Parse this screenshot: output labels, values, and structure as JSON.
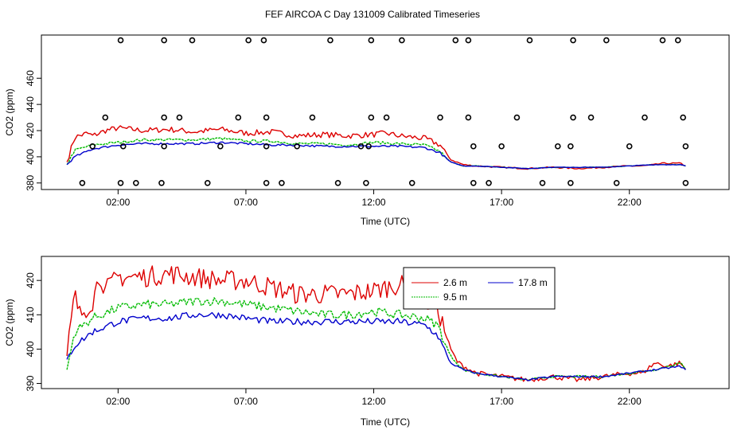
{
  "title": "FEF AIRCOA C  Day 131009  Calibrated Timeseries",
  "colors": {
    "red": "#dd0000",
    "green": "#00bb00",
    "blue": "#0000cc",
    "axis": "#000000"
  },
  "chart_data": [
    {
      "type": "line",
      "panel": "top",
      "xlabel": "Time (UTC)",
      "ylabel": "CO2 (ppm)",
      "x_ticks": [
        2,
        7,
        12,
        17,
        22
      ],
      "x_tick_labels": [
        "02:00",
        "07:00",
        "12:00",
        "17:00",
        "22:00"
      ],
      "xlim": [
        -1.0,
        25.9
      ],
      "y_ticks": [
        380,
        400,
        420,
        440,
        460
      ],
      "y_tick_labels": [
        "380",
        "400",
        "420",
        "440",
        "460"
      ],
      "ylim": [
        375,
        493
      ],
      "series_keypoints": {
        "red": [
          [
            0,
            396
          ],
          [
            0.3,
            415
          ],
          [
            0.8,
            418
          ],
          [
            1,
            416
          ],
          [
            1.5,
            420
          ],
          [
            2,
            422
          ],
          [
            3,
            420
          ],
          [
            4,
            421
          ],
          [
            5,
            419
          ],
          [
            6,
            421
          ],
          [
            7,
            418
          ],
          [
            8,
            419
          ],
          [
            9,
            416
          ],
          [
            10,
            417
          ],
          [
            11,
            416
          ],
          [
            12,
            417
          ],
          [
            12.5,
            418
          ],
          [
            13,
            416
          ],
          [
            13.5,
            415
          ],
          [
            14,
            414
          ],
          [
            14.6,
            409
          ],
          [
            15,
            398
          ],
          [
            15.5,
            394
          ],
          [
            16,
            393
          ],
          [
            17,
            392
          ],
          [
            18,
            391
          ],
          [
            19,
            392
          ],
          [
            20,
            391
          ],
          [
            21,
            392
          ],
          [
            22,
            393
          ],
          [
            22.5,
            393
          ],
          [
            23,
            394
          ],
          [
            23.3,
            395
          ],
          [
            24,
            395
          ],
          [
            24.2,
            393
          ]
        ],
        "green": [
          [
            0,
            394
          ],
          [
            0.3,
            405
          ],
          [
            1,
            409
          ],
          [
            2,
            411
          ],
          [
            3,
            413
          ],
          [
            4,
            413
          ],
          [
            5,
            413
          ],
          [
            6,
            414
          ],
          [
            7,
            412
          ],
          [
            8,
            412
          ],
          [
            9,
            410
          ],
          [
            10,
            410
          ],
          [
            11,
            409
          ],
          [
            12,
            411
          ],
          [
            13,
            410
          ],
          [
            14,
            409
          ],
          [
            14.6,
            404
          ],
          [
            15,
            396
          ],
          [
            15.5,
            393
          ],
          [
            16,
            393
          ],
          [
            17,
            392
          ],
          [
            18,
            391
          ],
          [
            19,
            392
          ],
          [
            20,
            392
          ],
          [
            21,
            392
          ],
          [
            22,
            393
          ],
          [
            23,
            394
          ],
          [
            24,
            394
          ],
          [
            24.2,
            393
          ]
        ],
        "blue": [
          [
            0,
            394
          ],
          [
            0.3,
            400
          ],
          [
            1,
            406
          ],
          [
            2,
            409
          ],
          [
            3,
            410
          ],
          [
            4,
            410
          ],
          [
            5,
            410
          ],
          [
            6,
            411
          ],
          [
            7,
            410
          ],
          [
            8,
            409
          ],
          [
            9,
            409
          ],
          [
            10,
            408
          ],
          [
            11,
            408
          ],
          [
            12,
            408
          ],
          [
            13,
            408
          ],
          [
            14,
            407
          ],
          [
            14.6,
            403
          ],
          [
            15,
            396
          ],
          [
            15.5,
            393
          ],
          [
            16,
            393
          ],
          [
            17,
            392
          ],
          [
            18,
            391
          ],
          [
            19,
            392
          ],
          [
            20,
            392
          ],
          [
            21,
            392
          ],
          [
            22,
            393
          ],
          [
            23,
            394
          ],
          [
            24,
            394
          ],
          [
            24.2,
            393
          ]
        ]
      },
      "circle_markers": [
        [
          0.6,
          380
        ],
        [
          2.1,
          380
        ],
        [
          2.7,
          380
        ],
        [
          3.7,
          380
        ],
        [
          5.5,
          380
        ],
        [
          7.8,
          380
        ],
        [
          8.4,
          380
        ],
        [
          10.6,
          380
        ],
        [
          11.7,
          380
        ],
        [
          13.5,
          380
        ],
        [
          15.9,
          380
        ],
        [
          16.5,
          380
        ],
        [
          18.6,
          380
        ],
        [
          19.7,
          380
        ],
        [
          21.5,
          380
        ],
        [
          24.2,
          380
        ],
        [
          1.0,
          408
        ],
        [
          2.2,
          408
        ],
        [
          3.8,
          408
        ],
        [
          6,
          408
        ],
        [
          7.8,
          408
        ],
        [
          9,
          408
        ],
        [
          11.5,
          408
        ],
        [
          11.8,
          408
        ],
        [
          15.9,
          408
        ],
        [
          17,
          408
        ],
        [
          19.2,
          408
        ],
        [
          19.7,
          408
        ],
        [
          22,
          408
        ],
        [
          24.2,
          408
        ],
        [
          1.5,
          430
        ],
        [
          3.8,
          430
        ],
        [
          4.4,
          430
        ],
        [
          6.7,
          430
        ],
        [
          7.8,
          430
        ],
        [
          9.6,
          430
        ],
        [
          11.9,
          430
        ],
        [
          12.5,
          430
        ],
        [
          14.6,
          430
        ],
        [
          15.7,
          430
        ],
        [
          17.6,
          430
        ],
        [
          19.8,
          430
        ],
        [
          20.5,
          430
        ],
        [
          22.6,
          430
        ],
        [
          24.1,
          430
        ],
        [
          2.1,
          489
        ],
        [
          3.8,
          489
        ],
        [
          4.9,
          489
        ],
        [
          7.1,
          489
        ],
        [
          7.7,
          489
        ],
        [
          10.3,
          489
        ],
        [
          11.9,
          489
        ],
        [
          13.1,
          489
        ],
        [
          15.2,
          489
        ],
        [
          15.7,
          489
        ],
        [
          18.1,
          489
        ],
        [
          19.8,
          489
        ],
        [
          21.1,
          489
        ],
        [
          23.3,
          489
        ],
        [
          23.9,
          489
        ]
      ]
    },
    {
      "type": "line",
      "panel": "bottom",
      "xlabel": "Time (UTC)",
      "ylabel": "CO2 (ppm)",
      "x_ticks": [
        2,
        7,
        12,
        17,
        22
      ],
      "x_tick_labels": [
        "02:00",
        "07:00",
        "12:00",
        "17:00",
        "22:00"
      ],
      "xlim": [
        -1.0,
        25.9
      ],
      "y_ticks": [
        390,
        400,
        410,
        420
      ],
      "y_tick_labels": [
        "390",
        "400",
        "410",
        "420"
      ],
      "ylim": [
        388.5,
        427
      ],
      "series_keypoints": {
        "red": [
          [
            0,
            398
          ],
          [
            0.2,
            410
          ],
          [
            0.3,
            416
          ],
          [
            0.5,
            410
          ],
          [
            1,
            414
          ],
          [
            1.3,
            422
          ],
          [
            1.5,
            417
          ],
          [
            2,
            421
          ],
          [
            3,
            421
          ],
          [
            4,
            422
          ],
          [
            5,
            421
          ],
          [
            6,
            420
          ],
          [
            7,
            420
          ],
          [
            8,
            418
          ],
          [
            9,
            416
          ],
          [
            10,
            416
          ],
          [
            11,
            416
          ],
          [
            12,
            417
          ],
          [
            13,
            419
          ],
          [
            13.8,
            415
          ],
          [
            14.5,
            412
          ],
          [
            15,
            400
          ],
          [
            15.3,
            396
          ],
          [
            16,
            393
          ],
          [
            17,
            392
          ],
          [
            18,
            391
          ],
          [
            19,
            392
          ],
          [
            20,
            391
          ],
          [
            21,
            392
          ],
          [
            22,
            393
          ],
          [
            22.5,
            393
          ],
          [
            23,
            396
          ],
          [
            23.5,
            395
          ],
          [
            24,
            396
          ],
          [
            24.2,
            394
          ]
        ],
        "green": [
          [
            0,
            394
          ],
          [
            0.3,
            405
          ],
          [
            1,
            409
          ],
          [
            2,
            412
          ],
          [
            3,
            413
          ],
          [
            4,
            413
          ],
          [
            5,
            414
          ],
          [
            6,
            414
          ],
          [
            7,
            413
          ],
          [
            8,
            412
          ],
          [
            9,
            411
          ],
          [
            10,
            410
          ],
          [
            11,
            410
          ],
          [
            12,
            411
          ],
          [
            13,
            410
          ],
          [
            14,
            409
          ],
          [
            14.5,
            407
          ],
          [
            15,
            398
          ],
          [
            15.5,
            394
          ],
          [
            16,
            393
          ],
          [
            17,
            392
          ],
          [
            18,
            391
          ],
          [
            19,
            392
          ],
          [
            20,
            392
          ],
          [
            21,
            392
          ],
          [
            22,
            393
          ],
          [
            23,
            394
          ],
          [
            24,
            396
          ],
          [
            24.2,
            394
          ]
        ],
        "blue": [
          [
            0,
            397
          ],
          [
            0.3,
            401
          ],
          [
            1,
            405
          ],
          [
            2,
            408
          ],
          [
            3,
            409
          ],
          [
            4,
            409
          ],
          [
            5,
            410
          ],
          [
            6,
            410
          ],
          [
            7,
            409
          ],
          [
            8,
            408
          ],
          [
            9,
            408
          ],
          [
            10,
            408
          ],
          [
            11,
            408
          ],
          [
            12,
            408
          ],
          [
            13,
            408
          ],
          [
            14,
            407
          ],
          [
            14.5,
            404
          ],
          [
            15,
            396
          ],
          [
            15.5,
            394
          ],
          [
            16,
            393
          ],
          [
            17,
            392
          ],
          [
            18,
            391
          ],
          [
            19,
            392
          ],
          [
            20,
            392
          ],
          [
            21,
            392
          ],
          [
            22,
            393
          ],
          [
            23,
            394
          ],
          [
            24,
            395
          ],
          [
            24.2,
            394
          ]
        ]
      },
      "legend": {
        "placement": "top-right",
        "entries": [
          {
            "label": "2.6 m",
            "color": "red"
          },
          {
            "label": "17.8 m",
            "color": "blue"
          },
          {
            "label": "9.5 m",
            "color": "green"
          }
        ]
      }
    }
  ]
}
